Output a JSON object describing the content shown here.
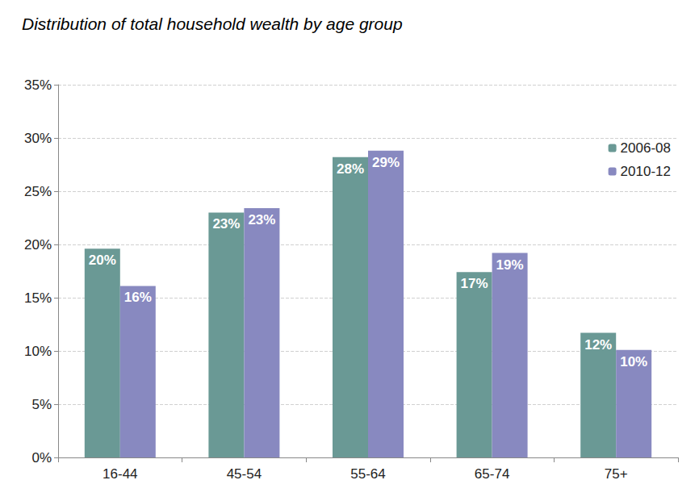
{
  "chart_data": {
    "type": "bar",
    "title": "Distribution of total household wealth by age group",
    "categories": [
      "16-44",
      "45-54",
      "55-64",
      "65-74",
      "75+"
    ],
    "series": [
      {
        "name": "2006-08",
        "color": "#6a9995",
        "values": [
          19.6,
          23.0,
          28.2,
          17.4,
          11.7
        ],
        "value_labels": [
          "20%",
          "23%",
          "28%",
          "17%",
          "12%"
        ]
      },
      {
        "name": "2010-12",
        "color": "#8889c0",
        "values": [
          16.1,
          23.4,
          28.8,
          19.2,
          10.1
        ],
        "value_labels": [
          "16%",
          "23%",
          "29%",
          "19%",
          "10%"
        ]
      }
    ],
    "ylim": [
      0,
      35
    ],
    "yticks": [
      {
        "value": 0,
        "label": "0%"
      },
      {
        "value": 5,
        "label": "5%"
      },
      {
        "value": 10,
        "label": "10%"
      },
      {
        "value": 15,
        "label": "15%"
      },
      {
        "value": 20,
        "label": "20%"
      },
      {
        "value": 25,
        "label": "25%"
      },
      {
        "value": 30,
        "label": "30%"
      },
      {
        "value": 35,
        "label": "35%"
      }
    ],
    "grid": true,
    "legend": "top-right",
    "data_labels": true
  }
}
